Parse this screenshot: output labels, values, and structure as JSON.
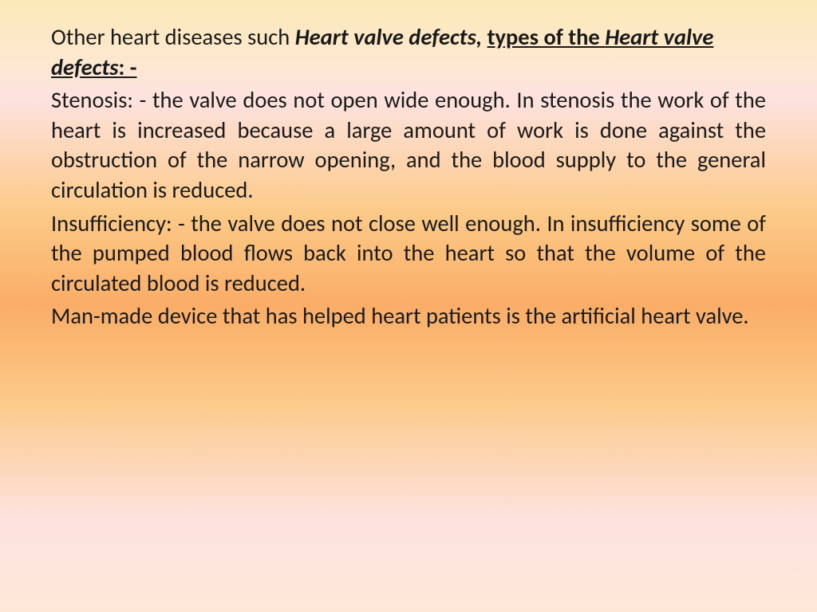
{
  "slide": {
    "background": {
      "gradient_stops": [
        "#fce9b8",
        "#fde8d0",
        "#fde2df",
        "#fcc987",
        "#faad67",
        "#fcc987",
        "#fde2df",
        "#fde8d8"
      ],
      "direction": "vertical"
    },
    "text_color": "#1a1a1a",
    "font_family": "Calibri",
    "font_size_pt": 21,
    "heading": {
      "part1": "Other heart diseases such ",
      "part2_bold_italic": "Heart valve defects,",
      "part3_space": " ",
      "part4_bold_underline": "types of the ",
      "part5_bold_italic_underline": "Heart valve defects",
      "part6_bold_underline": ": -"
    },
    "paragraphs": {
      "p1": "Stenosis: - the valve does not open wide enough. In stenosis the work of the heart is increased because a large amount of work is done against the obstruction of the narrow opening, and the blood supply to the general circulation is reduced.",
      "p2": "Insufficiency: - the valve does not close well enough. In insufficiency some of the pumped blood flows back into the heart so that the volume of the circulated blood is reduced.",
      "p3": "Man-made device that has helped heart patients is the artificial heart valve."
    }
  }
}
